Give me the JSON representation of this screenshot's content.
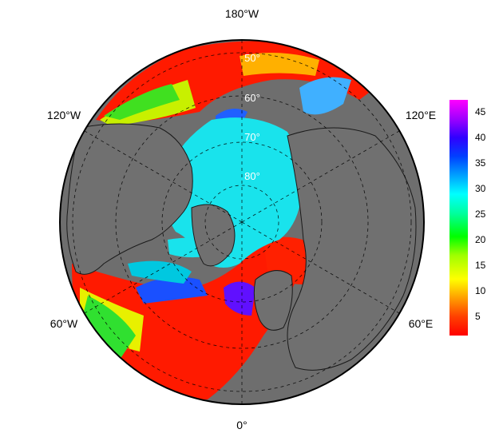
{
  "map": {
    "projection": "north polar stereographic",
    "ocean_color": "#6e6e6e",
    "land_border_color": "#1a1a1a",
    "ice_color": "#19e3ec",
    "graticule": "dashed",
    "lon_labels": [
      "180°W",
      "120°W",
      "120°E",
      "60°W",
      "60°E",
      "0°"
    ],
    "lat_labels": [
      "50°",
      "60°",
      "70°",
      "80°"
    ]
  },
  "colorbar": {
    "ticks": [
      "45",
      "40",
      "35",
      "30",
      "25",
      "20",
      "15",
      "10",
      "5"
    ],
    "range": [
      1,
      47
    ],
    "colors": [
      "#ff0000",
      "#ff4000",
      "#ff8000",
      "#ffc000",
      "#ffff00",
      "#c0ff00",
      "#60ff00",
      "#00ff00",
      "#00ff80",
      "#00ffd0",
      "#00e8ff",
      "#00a0ff",
      "#0050ff",
      "#0000ff",
      "#5000ff",
      "#a000ff",
      "#ff00ff"
    ]
  }
}
